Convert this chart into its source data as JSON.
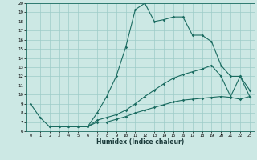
{
  "xlabel": "Humidex (Indice chaleur)",
  "xlim": [
    -0.5,
    23.5
  ],
  "ylim": [
    6,
    20
  ],
  "yticks": [
    6,
    7,
    8,
    9,
    10,
    11,
    12,
    13,
    14,
    15,
    16,
    17,
    18,
    19,
    20
  ],
  "xticks": [
    0,
    1,
    2,
    3,
    4,
    5,
    6,
    7,
    8,
    9,
    10,
    11,
    12,
    13,
    14,
    15,
    16,
    17,
    18,
    19,
    20,
    21,
    22,
    23
  ],
  "bg_color": "#cce8e4",
  "line_color": "#1a6b60",
  "grid_color": "#9eccc8",
  "line1_x": [
    0,
    1,
    2,
    3,
    4,
    5,
    6,
    7,
    8,
    9,
    10,
    11,
    12,
    13,
    14,
    15,
    16,
    17,
    18,
    19,
    20,
    21,
    22,
    23
  ],
  "line1_y": [
    9.0,
    7.5,
    6.5,
    6.5,
    6.5,
    6.5,
    6.5,
    8.0,
    9.8,
    12.0,
    15.2,
    19.3,
    20.0,
    18.0,
    18.2,
    18.5,
    18.5,
    16.5,
    16.5,
    15.8,
    13.2,
    12.0,
    12.0,
    10.5
  ],
  "line2_x": [
    2,
    3,
    4,
    5,
    6,
    7,
    8,
    9,
    10,
    11,
    12,
    13,
    14,
    15,
    16,
    17,
    18,
    19,
    20,
    21,
    22,
    23
  ],
  "line2_y": [
    6.5,
    6.5,
    6.5,
    6.5,
    6.5,
    7.2,
    7.5,
    7.8,
    8.3,
    9.0,
    9.8,
    10.5,
    11.2,
    11.8,
    12.2,
    12.5,
    12.8,
    13.2,
    12.0,
    9.8,
    12.0,
    9.8
  ],
  "line3_x": [
    2,
    3,
    4,
    5,
    6,
    7,
    8,
    9,
    10,
    11,
    12,
    13,
    14,
    15,
    16,
    17,
    18,
    19,
    20,
    21,
    22,
    23
  ],
  "line3_y": [
    6.5,
    6.5,
    6.5,
    6.5,
    6.5,
    7.0,
    7.0,
    7.3,
    7.6,
    8.0,
    8.3,
    8.6,
    8.9,
    9.2,
    9.4,
    9.5,
    9.6,
    9.7,
    9.8,
    9.7,
    9.5,
    9.8
  ]
}
